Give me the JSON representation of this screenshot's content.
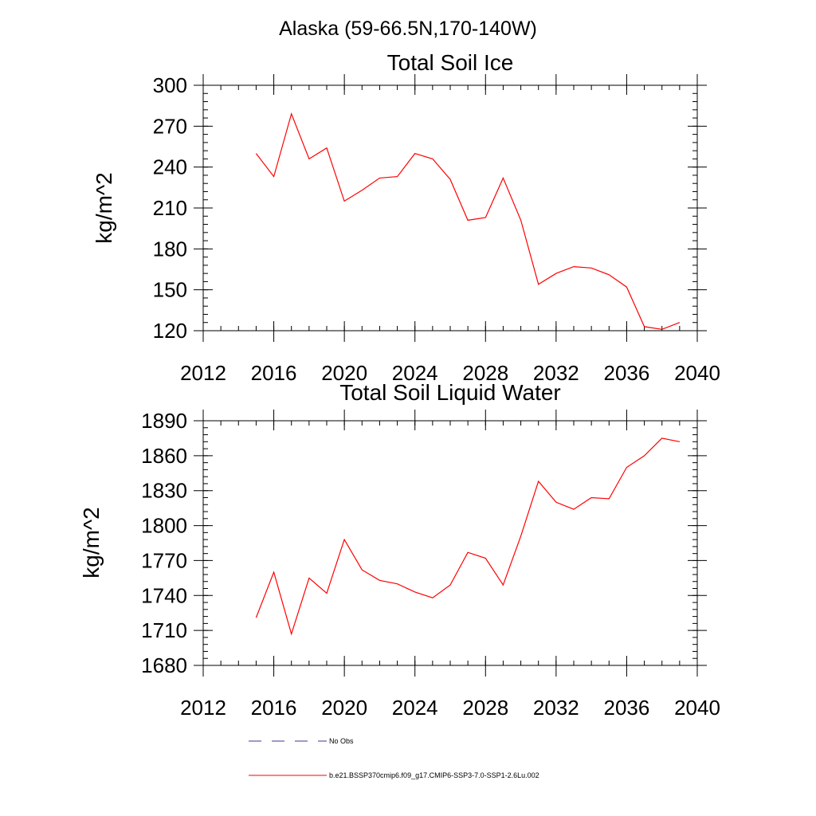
{
  "figure": {
    "title": "Alaska (59-66.5N,170-140W)"
  },
  "colors": {
    "series": "#ff0000",
    "obs": "#3a3a8a",
    "axis": "#000000"
  },
  "legend": {
    "placement": "bottom",
    "entries": [
      {
        "label": "No Obs",
        "style": "dashed",
        "color": "#3a3a8a"
      },
      {
        "label": "b.e21.BSSP370cmip6.f09_g17.CMIP6-SSP3-7.0-SSP1-2.6Lu.002",
        "style": "solid",
        "color": "#ff0000"
      }
    ]
  },
  "chart_data": [
    {
      "type": "line",
      "title": "Total Soil Ice",
      "xlabel": "",
      "ylabel": "kg/m^2",
      "xlim": [
        2012,
        2040
      ],
      "ylim": [
        120,
        300
      ],
      "xticks": [
        2012,
        2016,
        2020,
        2024,
        2028,
        2032,
        2036,
        2040
      ],
      "yticks": [
        120,
        150,
        180,
        210,
        240,
        270,
        300
      ],
      "grid": false,
      "series": [
        {
          "x": [
            2015,
            2016,
            2017,
            2018,
            2019,
            2020,
            2021,
            2022,
            2023,
            2024,
            2025,
            2026,
            2027,
            2028,
            2029,
            2030,
            2031,
            2032,
            2033,
            2034,
            2035,
            2036,
            2037,
            2038,
            2039
          ],
          "y": [
            250,
            233,
            279,
            246,
            254,
            215,
            223,
            232,
            233,
            250,
            246,
            231,
            201,
            203,
            232,
            201,
            154,
            162,
            167,
            166,
            161,
            152,
            123,
            121,
            126
          ]
        }
      ]
    },
    {
      "type": "line",
      "title": "Total Soil Liquid Water",
      "xlabel": "",
      "ylabel": "kg/m^2",
      "xlim": [
        2012,
        2040
      ],
      "ylim": [
        1680,
        1890
      ],
      "xticks": [
        2012,
        2016,
        2020,
        2024,
        2028,
        2032,
        2036,
        2040
      ],
      "yticks": [
        1680,
        1710,
        1740,
        1770,
        1800,
        1830,
        1860,
        1890
      ],
      "grid": false,
      "series": [
        {
          "x": [
            2015,
            2016,
            2017,
            2018,
            2019,
            2020,
            2021,
            2022,
            2023,
            2024,
            2025,
            2026,
            2027,
            2028,
            2029,
            2030,
            2031,
            2032,
            2033,
            2034,
            2035,
            2036,
            2037,
            2038,
            2039
          ],
          "y": [
            1721,
            1760,
            1707,
            1755,
            1742,
            1788,
            1762,
            1753,
            1750,
            1743,
            1738,
            1749,
            1777,
            1772,
            1749,
            1791,
            1838,
            1820,
            1814,
            1824,
            1823,
            1850,
            1860,
            1875,
            1872
          ]
        }
      ]
    }
  ]
}
